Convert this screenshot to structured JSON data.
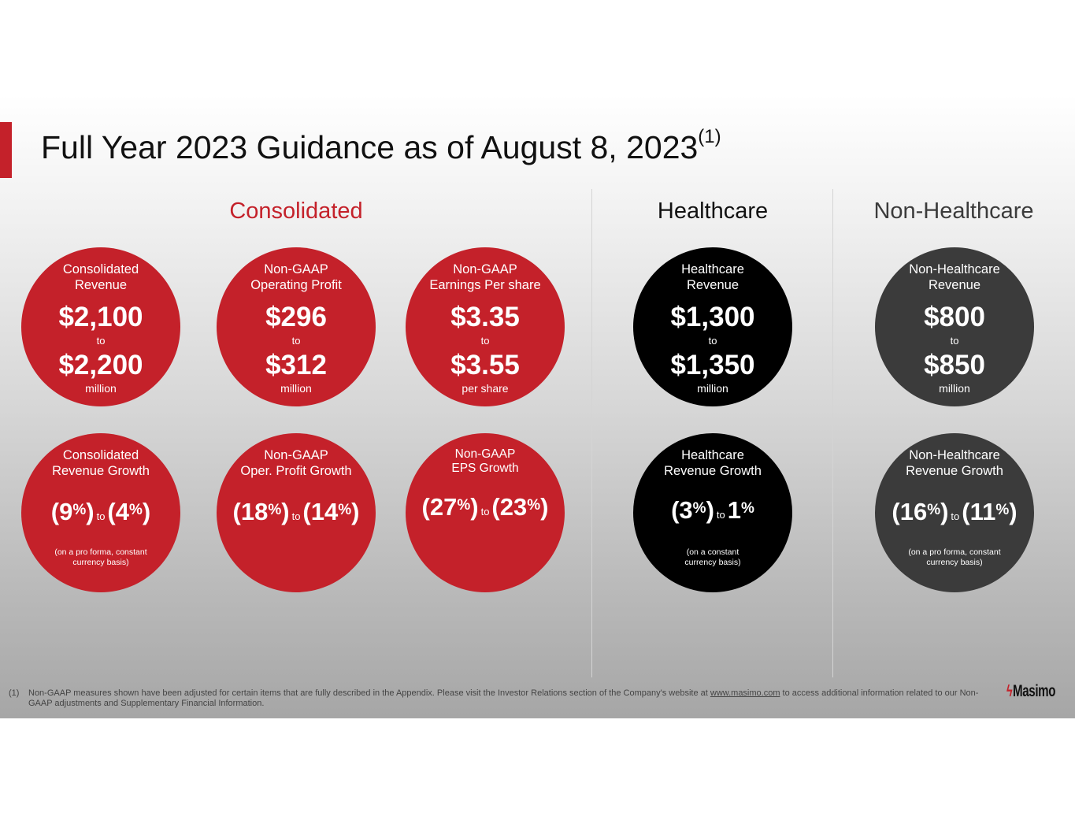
{
  "title": "Full Year 2023 Guidance as of August 8, 2023",
  "title_superscript": "(1)",
  "colors": {
    "accent": "#c4212a",
    "healthcare": "#000000",
    "non_healthcare": "#3b3b3b"
  },
  "sections": {
    "consolidated": "Consolidated",
    "healthcare": "Healthcare",
    "non_healthcare": "Non-Healthcare"
  },
  "value_circles": [
    {
      "label1": "Consolidated",
      "label2": "Revenue",
      "low": "$2,100",
      "to": "to",
      "high": "$2,200",
      "unit": "million"
    },
    {
      "label1": "Non-GAAP",
      "label2": "Operating Profit",
      "low": "$296",
      "to": "to",
      "high": "$312",
      "unit": "million"
    },
    {
      "label1": "Non-GAAP",
      "label2": "Earnings Per share",
      "low": "$3.35",
      "to": "to",
      "high": "$3.55",
      "unit": "per share"
    },
    {
      "label1": "Healthcare",
      "label2": "Revenue",
      "low": "$1,300",
      "to": "to",
      "high": "$1,350",
      "unit": "million"
    },
    {
      "label1": "Non-Healthcare",
      "label2": "Revenue",
      "low": "$800",
      "to": "to",
      "high": "$850",
      "unit": "million"
    }
  ],
  "growth_circles": [
    {
      "label1": "Consolidated",
      "label2": "Revenue Growth",
      "low_pre": "(9",
      "low_pct": "%",
      "low_post": ")",
      "to": "to",
      "high_pre": "(4",
      "high_pct": "%",
      "high_post": ")",
      "basis1": "(on a pro forma, constant",
      "basis2": "currency basis)"
    },
    {
      "label1": "Non-GAAP",
      "label2": "Oper. Profit Growth",
      "low_pre": "(18",
      "low_pct": "%",
      "low_post": ")",
      "to": "to",
      "high_pre": "(14",
      "high_pct": "%",
      "high_post": ")"
    },
    {
      "label1": "Non-GAAP",
      "label2": "EPS Growth",
      "low_pre": "(27",
      "low_pct": "%",
      "low_post": ")",
      "to": "to",
      "high_pre": "(23",
      "high_pct": "%",
      "high_post": ")"
    },
    {
      "label1": "Healthcare",
      "label2": "Revenue Growth",
      "low_pre": "(3",
      "low_pct": "%",
      "low_post": ")",
      "to": "to",
      "high_pre": "1",
      "high_pct": "%",
      "high_post": "",
      "basis1": "(on a constant",
      "basis2": "currency basis)"
    },
    {
      "label1": "Non-Healthcare",
      "label2": "Revenue Growth",
      "low_pre": "(16",
      "low_pct": "%",
      "low_post": ")",
      "to": "to",
      "high_pre": "(11",
      "high_pct": "%",
      "high_post": ")",
      "basis1": "(on a pro forma, constant",
      "basis2": "currency basis)"
    }
  ],
  "footnote": {
    "number": "(1)",
    "text_before": "Non-GAAP measures shown have been adjusted for certain items that are fully described in the Appendix. Please visit the Investor Relations section of the Company's website at ",
    "link": "www.masimo.com",
    "text_after": " to access additional information related to our Non-GAAP adjustments and Supplementary Financial Information."
  },
  "logo": {
    "mark": "ϟ",
    "text": "Masimo"
  }
}
